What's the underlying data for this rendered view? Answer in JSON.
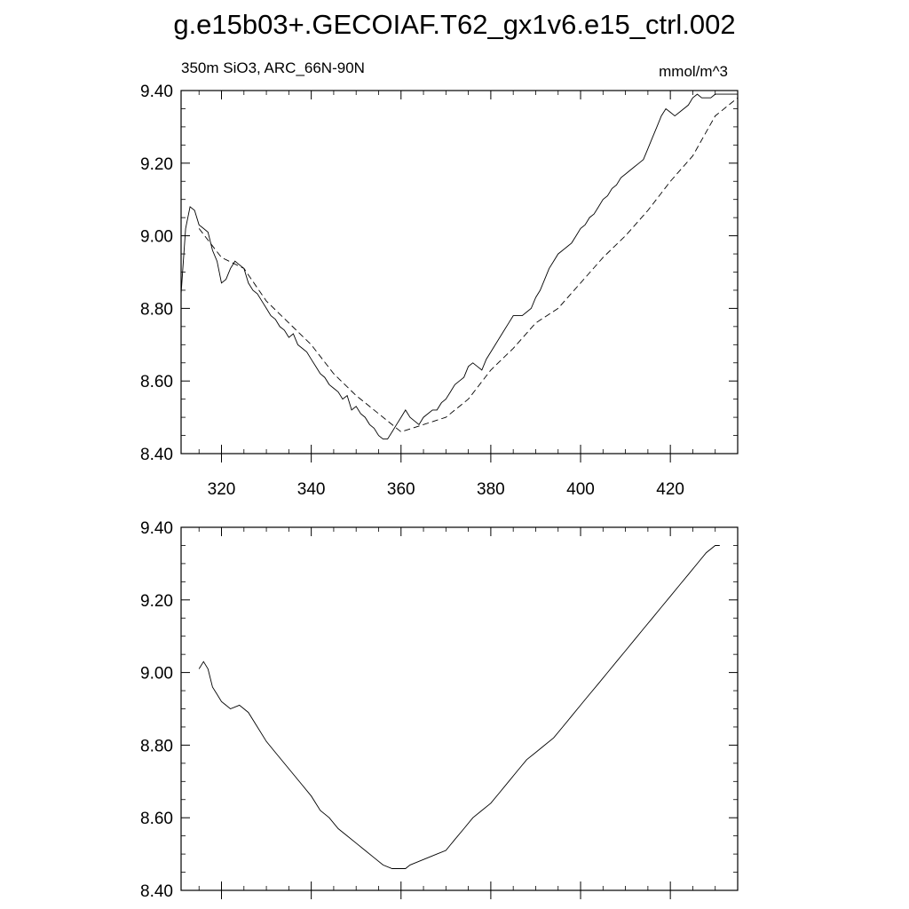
{
  "title": "g.e15b03+.GECOIAF.T62_gx1v6.e15_ctrl.002",
  "chart_data": [
    {
      "type": "line",
      "subtitle_left": "350m SiO3, ARC_66N-90N",
      "subtitle_right": "mmol/m^3",
      "xlim": [
        311,
        435
      ],
      "ylim": [
        8.4,
        9.4
      ],
      "x_ticks": [
        320,
        340,
        360,
        380,
        400,
        420
      ],
      "x_tick_labels": [
        "320",
        "340",
        "360",
        "380",
        "400",
        "420"
      ],
      "y_ticks": [
        8.4,
        8.6,
        8.8,
        9.0,
        9.2,
        9.4
      ],
      "y_tick_labels": [
        "8.40",
        "8.60",
        "8.80",
        "9.00",
        "9.20",
        "9.40"
      ],
      "grid": false,
      "series": [
        {
          "style": "solid",
          "x": [
            311,
            312,
            313,
            314,
            315,
            316,
            317,
            318,
            319,
            320,
            321,
            322,
            323,
            324,
            325,
            326,
            327,
            328,
            329,
            330,
            331,
            332,
            333,
            334,
            335,
            336,
            337,
            338,
            339,
            340,
            341,
            342,
            343,
            344,
            345,
            346,
            347,
            348,
            349,
            350,
            351,
            352,
            353,
            354,
            355,
            356,
            357,
            358,
            359,
            360,
            361,
            362,
            363,
            364,
            365,
            366,
            367,
            368,
            369,
            370,
            371,
            372,
            373,
            374,
            375,
            376,
            377,
            378,
            379,
            380,
            381,
            382,
            383,
            384,
            385,
            386,
            387,
            388,
            389,
            390,
            391,
            392,
            393,
            394,
            395,
            396,
            397,
            398,
            399,
            400,
            401,
            402,
            403,
            404,
            405,
            406,
            407,
            408,
            409,
            410,
            411,
            412,
            413,
            414,
            415,
            416,
            417,
            418,
            419,
            420,
            421,
            422,
            423,
            424,
            425,
            426,
            427,
            428,
            429,
            430,
            431,
            432,
            433,
            434,
            435
          ],
          "y": [
            8.84,
            9.02,
            9.08,
            9.07,
            9.03,
            9.02,
            9.01,
            8.96,
            8.93,
            8.87,
            8.88,
            8.91,
            8.93,
            8.92,
            8.91,
            8.87,
            8.85,
            8.84,
            8.82,
            8.8,
            8.78,
            8.77,
            8.75,
            8.74,
            8.72,
            8.73,
            8.7,
            8.69,
            8.68,
            8.66,
            8.64,
            8.62,
            8.61,
            8.59,
            8.58,
            8.57,
            8.55,
            8.56,
            8.52,
            8.53,
            8.51,
            8.5,
            8.48,
            8.47,
            8.45,
            8.44,
            8.44,
            8.46,
            8.48,
            8.5,
            8.52,
            8.5,
            8.49,
            8.48,
            8.5,
            8.51,
            8.52,
            8.52,
            8.54,
            8.55,
            8.57,
            8.59,
            8.6,
            8.61,
            8.64,
            8.65,
            8.64,
            8.63,
            8.66,
            8.68,
            8.7,
            8.72,
            8.74,
            8.76,
            8.78,
            8.78,
            8.78,
            8.79,
            8.8,
            8.83,
            8.85,
            8.88,
            8.91,
            8.93,
            8.95,
            8.96,
            8.97,
            8.98,
            9.0,
            9.02,
            9.03,
            9.05,
            9.06,
            9.08,
            9.1,
            9.11,
            9.13,
            9.14,
            9.16,
            9.17,
            9.18,
            9.19,
            9.2,
            9.21,
            9.24,
            9.27,
            9.3,
            9.33,
            9.35,
            9.34,
            9.33,
            9.34,
            9.35,
            9.36,
            9.38,
            9.39,
            9.38,
            9.38,
            9.38,
            9.39,
            9.39,
            9.39,
            9.39,
            9.39,
            9.39
          ]
        },
        {
          "style": "dashed",
          "x": [
            315,
            320,
            325,
            330,
            335,
            340,
            345,
            350,
            355,
            360,
            365,
            370,
            375,
            380,
            385,
            390,
            395,
            400,
            405,
            410,
            415,
            420,
            425,
            430,
            435
          ],
          "y": [
            9.02,
            8.94,
            8.91,
            8.82,
            8.76,
            8.7,
            8.62,
            8.56,
            8.51,
            8.46,
            8.48,
            8.5,
            8.55,
            8.63,
            8.69,
            8.76,
            8.8,
            8.87,
            8.94,
            9.0,
            9.07,
            9.15,
            9.22,
            9.33,
            9.38
          ]
        }
      ]
    },
    {
      "type": "line",
      "xlim": [
        311,
        435
      ],
      "ylim": [
        8.4,
        9.4
      ],
      "x_ticks": [
        320,
        340,
        360,
        380,
        400,
        420
      ],
      "y_ticks": [
        8.4,
        8.6,
        8.8,
        9.0,
        9.2,
        9.4
      ],
      "y_tick_labels": [
        "8.40",
        "8.60",
        "8.80",
        "9.00",
        "9.20",
        "9.40"
      ],
      "grid": false,
      "series": [
        {
          "style": "solid",
          "x": [
            315,
            316,
            317,
            318,
            319,
            320,
            322,
            324,
            325,
            326,
            328,
            330,
            332,
            334,
            336,
            338,
            340,
            342,
            344,
            346,
            348,
            350,
            352,
            354,
            356,
            358,
            360,
            361,
            362,
            364,
            366,
            368,
            370,
            372,
            374,
            376,
            378,
            380,
            382,
            384,
            386,
            388,
            390,
            392,
            394,
            396,
            398,
            400,
            402,
            404,
            406,
            408,
            410,
            412,
            414,
            416,
            418,
            420,
            422,
            424,
            426,
            428,
            430,
            431
          ],
          "y": [
            9.01,
            9.03,
            9.01,
            8.96,
            8.94,
            8.92,
            8.9,
            8.91,
            8.9,
            8.89,
            8.85,
            8.81,
            8.78,
            8.75,
            8.72,
            8.69,
            8.66,
            8.62,
            8.6,
            8.57,
            8.55,
            8.53,
            8.51,
            8.49,
            8.47,
            8.46,
            8.46,
            8.46,
            8.47,
            8.48,
            8.49,
            8.5,
            8.51,
            8.54,
            8.57,
            8.6,
            8.62,
            8.64,
            8.67,
            8.7,
            8.73,
            8.76,
            8.78,
            8.8,
            8.82,
            8.85,
            8.88,
            8.91,
            8.94,
            8.97,
            9.0,
            9.03,
            9.06,
            9.09,
            9.12,
            9.15,
            9.18,
            9.21,
            9.24,
            9.27,
            9.3,
            9.33,
            9.35,
            9.35
          ]
        }
      ]
    }
  ]
}
